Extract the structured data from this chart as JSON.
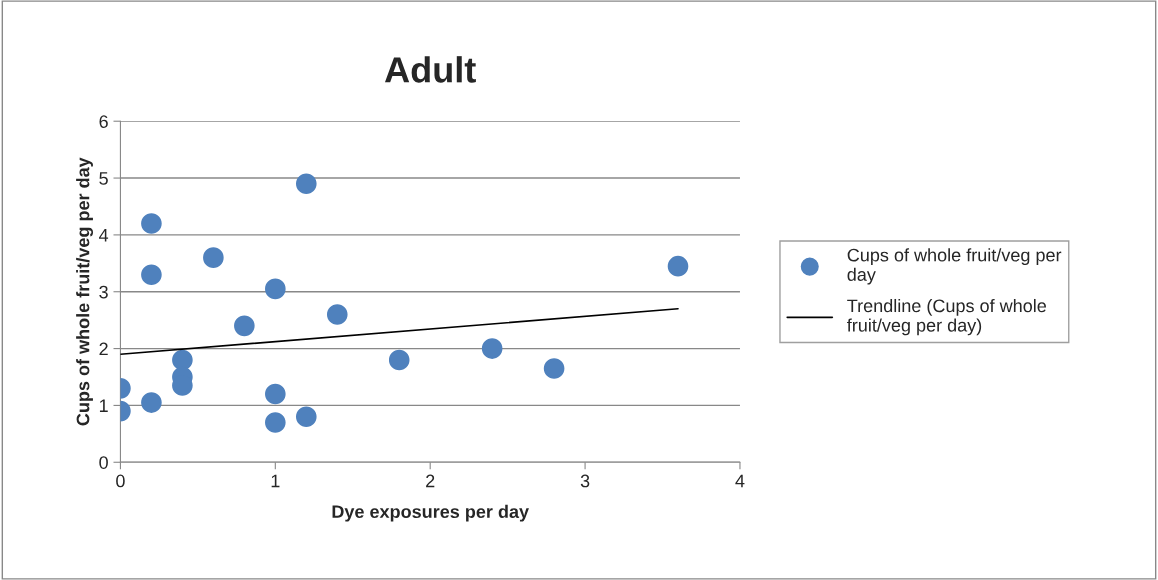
{
  "chart_data": {
    "type": "scatter",
    "title": "Adult",
    "xlabel": "Dye exposures per day",
    "ylabel": "Cups of whole fruit/veg per day",
    "xlim": [
      0,
      4
    ],
    "xticks": [
      0,
      1,
      2,
      3,
      4
    ],
    "ylim": [
      0,
      6
    ],
    "yticks": [
      0,
      1,
      2,
      3,
      4,
      5,
      6
    ],
    "grid": "y",
    "legend": "right",
    "marker": "circle",
    "series": [
      {
        "name": "Cups of whole fruit/veg per day",
        "color": "#4f81bd",
        "x": [
          0,
          0,
          0.2,
          0.2,
          0.2,
          0.4,
          0.4,
          0.4,
          0.6,
          0.8,
          1.0,
          1.0,
          1.0,
          1.2,
          1.2,
          1.4,
          1.8,
          2.4,
          2.8,
          3.6
        ],
        "values": [
          1.3,
          0.9,
          4.2,
          3.3,
          1.05,
          1.8,
          1.5,
          1.35,
          3.6,
          2.4,
          3.05,
          1.2,
          0.7,
          4.9,
          0.8,
          2.6,
          1.8,
          2.0,
          1.65,
          3.45
        ]
      },
      {
        "name": "Trendline (Cups of whole fruit/veg per day)",
        "type": "line",
        "marker": "none",
        "color": "#000000",
        "line_style": "solid",
        "x": [
          0,
          3.6
        ],
        "values": [
          1.9,
          2.7
        ]
      }
    ]
  }
}
